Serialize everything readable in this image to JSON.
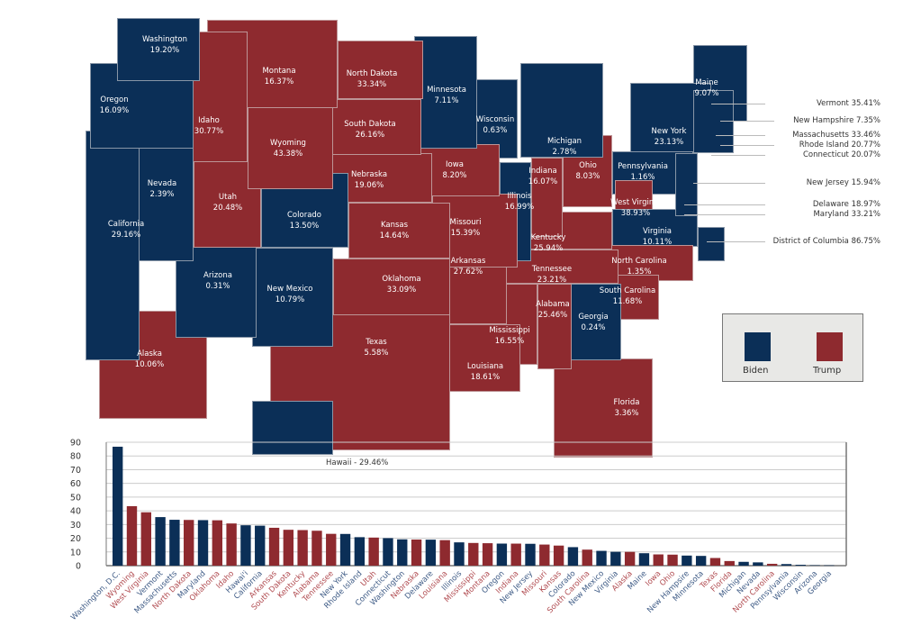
{
  "colors": {
    "biden": "#0b2f57",
    "trump": "#8e2a2f",
    "biden_text": "#3d5a85",
    "trump_text": "#b04a4f"
  },
  "legend": {
    "biden": "Biden",
    "trump": "Trump"
  },
  "states": {
    "Washington": {
      "label": "Washington",
      "value": "19.20%",
      "winner": "biden"
    },
    "Oregon": {
      "label": "Oregon",
      "value": "16.09%",
      "winner": "biden"
    },
    "California": {
      "label": "California",
      "value": "29.16%",
      "winner": "biden"
    },
    "Nevada": {
      "label": "Nevada",
      "value": "2.39%",
      "winner": "biden"
    },
    "Idaho": {
      "label": "Idaho",
      "value": "30.77%",
      "winner": "trump"
    },
    "Montana": {
      "label": "Montana",
      "value": "16.37%",
      "winner": "trump"
    },
    "Wyoming": {
      "label": "Wyoming",
      "value": "43.38%",
      "winner": "trump"
    },
    "Utah": {
      "label": "Utah",
      "value": "20.48%",
      "winner": "trump"
    },
    "Colorado": {
      "label": "Colorado",
      "value": "13.50%",
      "winner": "biden"
    },
    "Arizona": {
      "label": "Arizona",
      "value": "0.31%",
      "winner": "biden"
    },
    "New Mexico": {
      "label": "New Mexico",
      "value": "10.79%",
      "winner": "biden"
    },
    "North Dakota": {
      "label": "North Dakota",
      "value": "33.34%",
      "winner": "trump"
    },
    "South Dakota": {
      "label": "South Dakota",
      "value": "26.16%",
      "winner": "trump"
    },
    "Nebraska": {
      "label": "Nebraska",
      "value": "19.06%",
      "winner": "trump"
    },
    "Kansas": {
      "label": "Kansas",
      "value": "14.64%",
      "winner": "trump"
    },
    "Oklahoma": {
      "label": "Oklahoma",
      "value": "33.09%",
      "winner": "trump"
    },
    "Texas": {
      "label": "Texas",
      "value": "5.58%",
      "winner": "trump"
    },
    "Minnesota": {
      "label": "Minnesota",
      "value": "7.11%",
      "winner": "biden"
    },
    "Iowa": {
      "label": "Iowa",
      "value": "8.20%",
      "winner": "trump"
    },
    "Missouri": {
      "label": "Missouri",
      "value": "15.39%",
      "winner": "trump"
    },
    "Arkansas": {
      "label": "Arkansas",
      "value": "27.62%",
      "winner": "trump"
    },
    "Louisiana": {
      "label": "Louisiana",
      "value": "18.61%",
      "winner": "trump"
    },
    "Wisconsin": {
      "label": "Wisconsin",
      "value": "0.63%",
      "winner": "biden"
    },
    "Illinois": {
      "label": "Illinois",
      "value": "16.99%",
      "winner": "biden"
    },
    "Michigan": {
      "label": "Michigan",
      "value": "2.78%",
      "winner": "biden"
    },
    "Indiana": {
      "label": "Indiana",
      "value": "16.07%",
      "winner": "trump"
    },
    "Ohio": {
      "label": "Ohio",
      "value": "8.03%",
      "winner": "trump"
    },
    "Kentucky": {
      "label": "Kentucky",
      "value": "25.94%",
      "winner": "trump"
    },
    "Tennessee": {
      "label": "Tennessee",
      "value": "23.21%",
      "winner": "trump"
    },
    "Mississippi": {
      "label": "Mississippi",
      "value": "16.55%",
      "winner": "trump"
    },
    "Alabama": {
      "label": "Alabama",
      "value": "25.46%",
      "winner": "trump"
    },
    "Georgia": {
      "label": "Georgia",
      "value": "0.24%",
      "winner": "biden"
    },
    "Florida": {
      "label": "Florida",
      "value": "3.36%",
      "winner": "trump"
    },
    "South Carolina": {
      "label": "South Carolina",
      "value": "11.68%",
      "winner": "trump"
    },
    "North Carolina": {
      "label": "North Carolina",
      "value": "1.35%",
      "winner": "trump"
    },
    "Virginia": {
      "label": "Virginia",
      "value": "10.11%",
      "winner": "biden"
    },
    "West Virginia": {
      "label": "West Virginia",
      "value": "38.93%",
      "winner": "trump"
    },
    "Pennsylvania": {
      "label": "Pennsylvania",
      "value": "1.16%",
      "winner": "biden"
    },
    "New York": {
      "label": "New York",
      "value": "23.13%",
      "winner": "biden"
    },
    "Maine": {
      "label": "Maine",
      "value": "9.07%",
      "winner": "biden"
    },
    "Alaska": {
      "label": "Alaska",
      "value": "10.06%",
      "winner": "trump"
    }
  },
  "side_labels": {
    "vermont": "Vermont  35.41%",
    "new_hampshire": "New Hampshire  7.35%",
    "massachusetts": "Massachusetts 33.46%",
    "rhode_island": "Rhode Island  20.77%",
    "connecticut": "Connecticut  20.07%",
    "new_jersey": "New Jersey  15.94%",
    "delaware": "Delaware  18.97%",
    "maryland": "Maryland 33.21%",
    "dc": "District of Columbia 86.75%"
  },
  "hawaii_label": "Hawaii - 29.46%",
  "chart_data": {
    "type": "bar",
    "title": "",
    "xlabel": "",
    "ylabel": "",
    "ylim": [
      0,
      90
    ],
    "yticks": [
      "0",
      "10",
      "20",
      "30",
      "40",
      "50",
      "60",
      "70",
      "80",
      "90"
    ],
    "categories": [
      "Washington, D.C.",
      "Wyoming",
      "West Virginia",
      "Vermont",
      "Massachusetts",
      "North Dakota",
      "Maryland",
      "Oklahoma",
      "Idaho",
      "Hawai'i",
      "California",
      "Arkansas",
      "South Dakota",
      "Kentucky",
      "Alabama",
      "Tennessee",
      "New York",
      "Rhode Island",
      "Utah",
      "Connecticut",
      "Washington",
      "Nebraska",
      "Delaware",
      "Louisiana",
      "Illinois",
      "Mississippi",
      "Montana",
      "Oregon",
      "Indiana",
      "New Jersey",
      "Missouri",
      "Kansas",
      "Colorado",
      "South Carolina",
      "New Mexico",
      "Virginia",
      "Alaska",
      "Maine",
      "Iowa",
      "Ohio",
      "New Hampsire",
      "Minnesota",
      "Texas",
      "Florida",
      "Michigan",
      "Nevada",
      "North Carolina",
      "Pennsylvania",
      "Wisconsin",
      "Arizona",
      "Georgia"
    ],
    "values": [
      86.75,
      43.38,
      38.93,
      35.41,
      33.46,
      33.34,
      33.21,
      33.09,
      30.77,
      29.46,
      29.16,
      27.62,
      26.16,
      25.94,
      25.46,
      23.21,
      23.13,
      20.77,
      20.48,
      20.07,
      19.2,
      19.06,
      18.97,
      18.61,
      16.99,
      16.55,
      16.37,
      16.09,
      16.07,
      15.94,
      15.39,
      14.64,
      13.5,
      11.68,
      10.79,
      10.11,
      10.06,
      9.07,
      8.2,
      8.03,
      7.35,
      7.11,
      5.58,
      3.36,
      2.78,
      2.39,
      1.35,
      1.16,
      0.63,
      0.31,
      0.24
    ],
    "winners": [
      "biden",
      "trump",
      "trump",
      "biden",
      "biden",
      "trump",
      "biden",
      "trump",
      "trump",
      "biden",
      "biden",
      "trump",
      "trump",
      "trump",
      "trump",
      "trump",
      "biden",
      "biden",
      "trump",
      "biden",
      "biden",
      "trump",
      "biden",
      "trump",
      "biden",
      "trump",
      "trump",
      "biden",
      "trump",
      "biden",
      "trump",
      "trump",
      "biden",
      "trump",
      "biden",
      "biden",
      "trump",
      "biden",
      "trump",
      "trump",
      "biden",
      "biden",
      "trump",
      "trump",
      "biden",
      "biden",
      "trump",
      "biden",
      "biden",
      "biden",
      "biden"
    ]
  }
}
